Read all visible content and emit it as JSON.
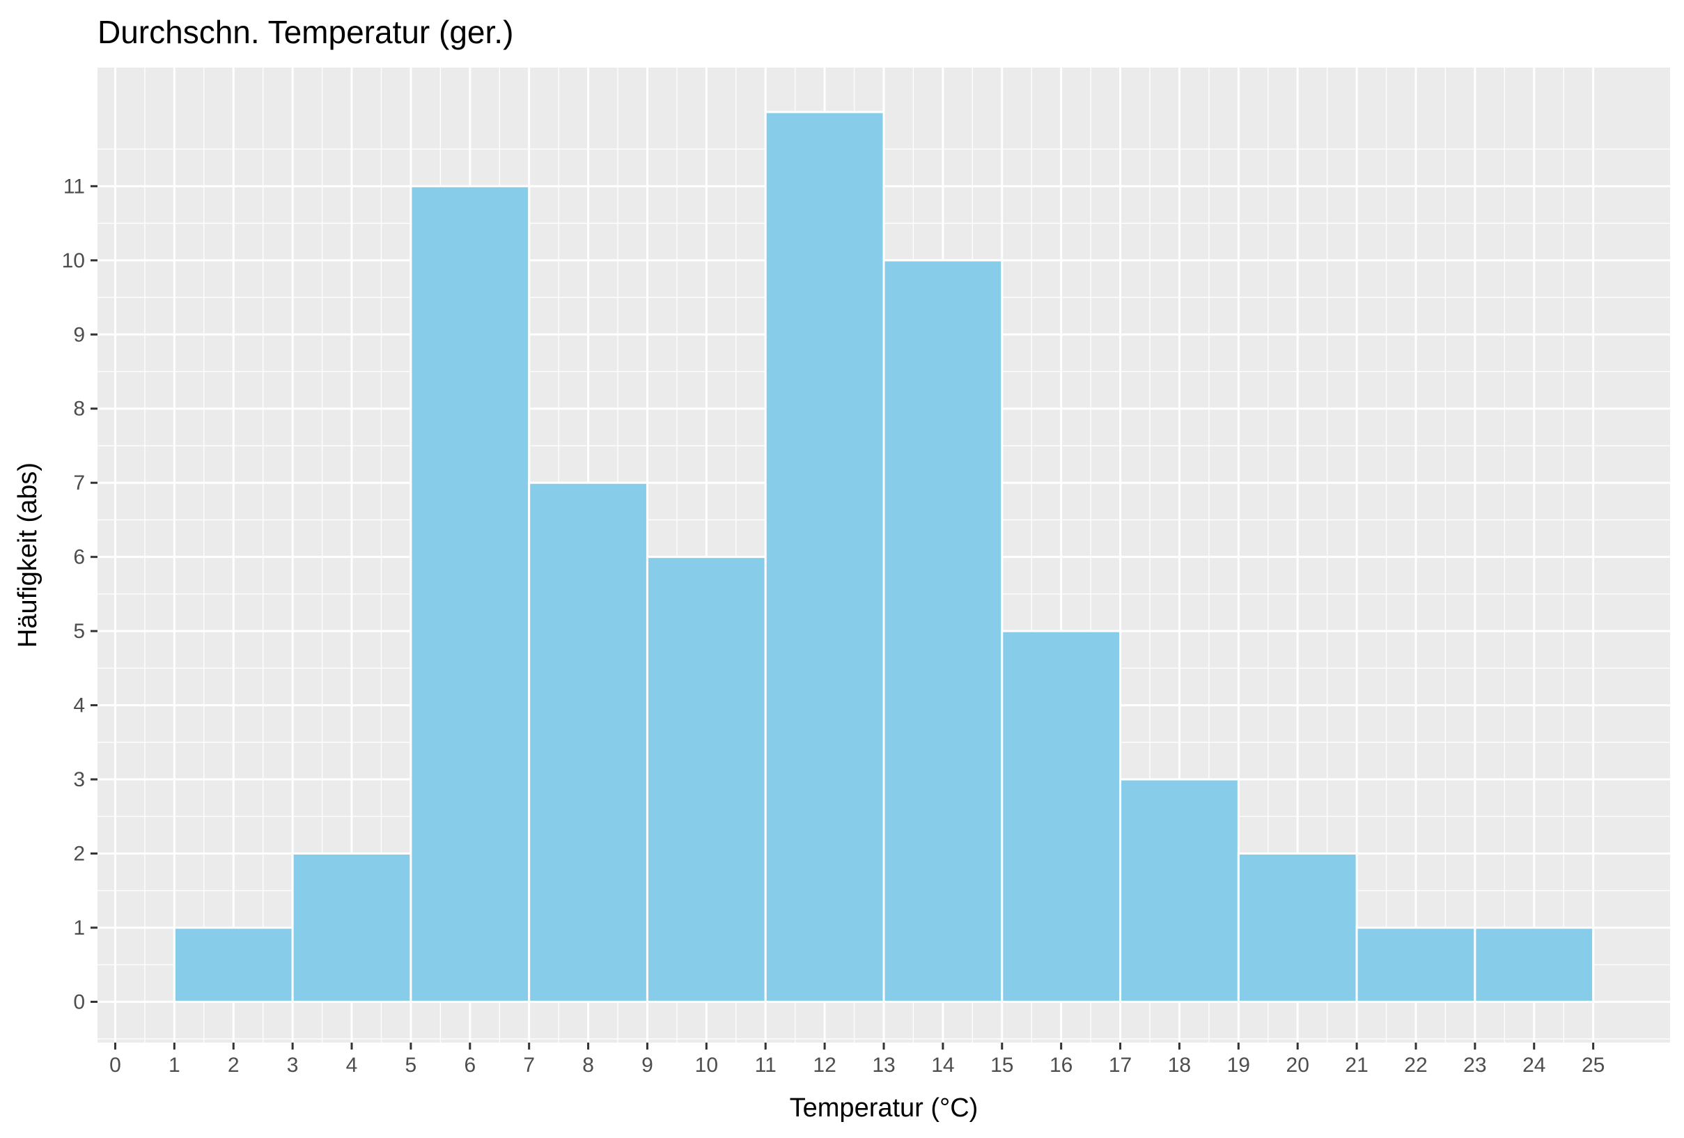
{
  "chart_data": {
    "type": "bar",
    "title": "Durchschn. Temperatur (ger.)",
    "xlabel": "Temperatur (°C)",
    "ylabel": "Häufigkeit (abs)",
    "bin_width": 2,
    "bins": [
      {
        "start": 1,
        "end": 3,
        "count": 1
      },
      {
        "start": 3,
        "end": 5,
        "count": 2
      },
      {
        "start": 5,
        "end": 7,
        "count": 11
      },
      {
        "start": 7,
        "end": 9,
        "count": 7
      },
      {
        "start": 9,
        "end": 11,
        "count": 6
      },
      {
        "start": 11,
        "end": 13,
        "count": 12
      },
      {
        "start": 13,
        "end": 15,
        "count": 10
      },
      {
        "start": 15,
        "end": 17,
        "count": 5
      },
      {
        "start": 17,
        "end": 19,
        "count": 3
      },
      {
        "start": 19,
        "end": 21,
        "count": 2
      },
      {
        "start": 21,
        "end": 23,
        "count": 1
      },
      {
        "start": 23,
        "end": 25,
        "count": 1
      }
    ],
    "xlim": [
      -0.3,
      26.3
    ],
    "ylim": [
      -0.55,
      12.6
    ],
    "x_ticks": [
      0,
      1,
      2,
      3,
      4,
      5,
      6,
      7,
      8,
      9,
      10,
      11,
      12,
      13,
      14,
      15,
      16,
      17,
      18,
      19,
      20,
      21,
      22,
      23,
      24,
      25
    ],
    "y_ticks": [
      0,
      1,
      2,
      3,
      4,
      5,
      6,
      7,
      8,
      9,
      10,
      11
    ],
    "grid": true,
    "colors": {
      "bar_fill": "#87CDE9",
      "bar_outline": "#FFFFFF",
      "panel_background": "#EBEBEB",
      "grid": "#FFFFFF",
      "tick_text": "#4D4D4D"
    }
  }
}
